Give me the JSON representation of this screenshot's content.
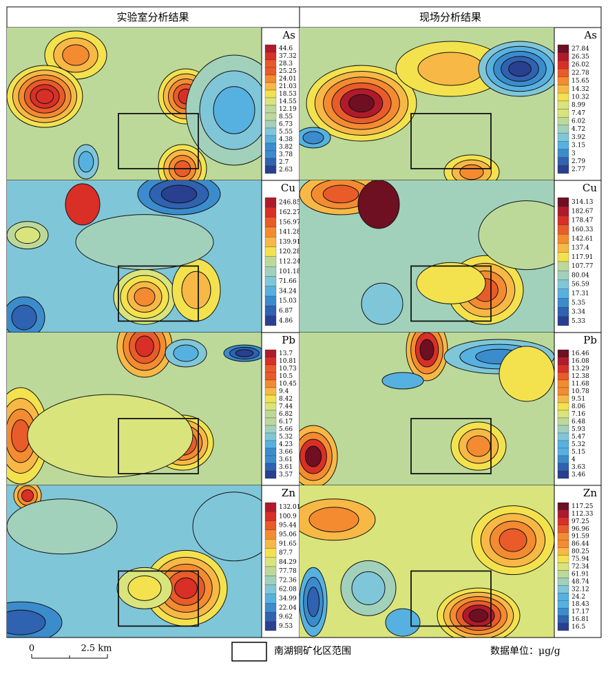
{
  "headers": [
    "实验室分析结果",
    "现场分析结果"
  ],
  "panels": [
    {
      "element": "As",
      "legend": [
        "44.6",
        "37.32",
        "28.3",
        "25.25",
        "24.01",
        "21.03",
        "18.53",
        "14.55",
        "12.19",
        "8.55",
        "6.73",
        "5.55",
        "4.38",
        "3.82",
        "3.78",
        "2.7",
        "2.63"
      ]
    },
    {
      "element": "As",
      "legend": [
        "27.84",
        "26.35",
        "26.02",
        "22.78",
        "15.65",
        "14.32",
        "10.32",
        "8.99",
        "7.47",
        "6.02",
        "4.72",
        "3.92",
        "3.15",
        "3",
        "2.79",
        "2.77"
      ]
    },
    {
      "element": "Cu",
      "legend": [
        "246.85",
        "162.27",
        "156.97",
        "141.28",
        "139.91",
        "120.28",
        "112.24",
        "101.18",
        "71.66",
        "34.24",
        "15.03",
        "6.87",
        "4.86"
      ]
    },
    {
      "element": "Cu",
      "legend": [
        "314.13",
        "182.67",
        "178.47",
        "160.33",
        "142.61",
        "137.4",
        "117.91",
        "107.77",
        "80.04",
        "56.59",
        "17.31",
        "5.35",
        "3.34",
        "5.33"
      ]
    },
    {
      "element": "Pb",
      "legend": [
        "13.7",
        "10.81",
        "10.73",
        "10.5",
        "10.45",
        "9.4",
        "8.42",
        "7.44",
        "6.82",
        "6.17",
        "5.66",
        "5.32",
        "4.23",
        "3.66",
        "3.61",
        "3.61",
        "3.57"
      ]
    },
    {
      "element": "Pb",
      "legend": [
        "16.46",
        "16.08",
        "13.29",
        "12.38",
        "11.68",
        "10.78",
        "9.51",
        "8.06",
        "7.16",
        "6.48",
        "5.93",
        "5.47",
        "5.32",
        "5.15",
        "4",
        "3.63",
        "3.46"
      ]
    },
    {
      "element": "Zn",
      "legend": [
        "132.01",
        "100.9",
        "95.44",
        "95.06",
        "91.65",
        "87.7",
        "84.29",
        "77.78",
        "72.36",
        "62.08",
        "34.99",
        "22.04",
        "9.62",
        "9.53"
      ]
    },
    {
      "element": "Zn",
      "legend": [
        "117.25",
        "112.33",
        "97.25",
        "96.96",
        "91.59",
        "86.44",
        "80.25",
        "75.94",
        "72.34",
        "61.91",
        "48.74",
        "32.12",
        "24.2",
        "18.43",
        "17.17",
        "16.81",
        "16.5"
      ]
    }
  ],
  "footer": {
    "scale_start": "0",
    "scale_label": "2.5 km",
    "box_label": "南湖铜矿化区范围",
    "unit": "数据单位：μg/g"
  }
}
